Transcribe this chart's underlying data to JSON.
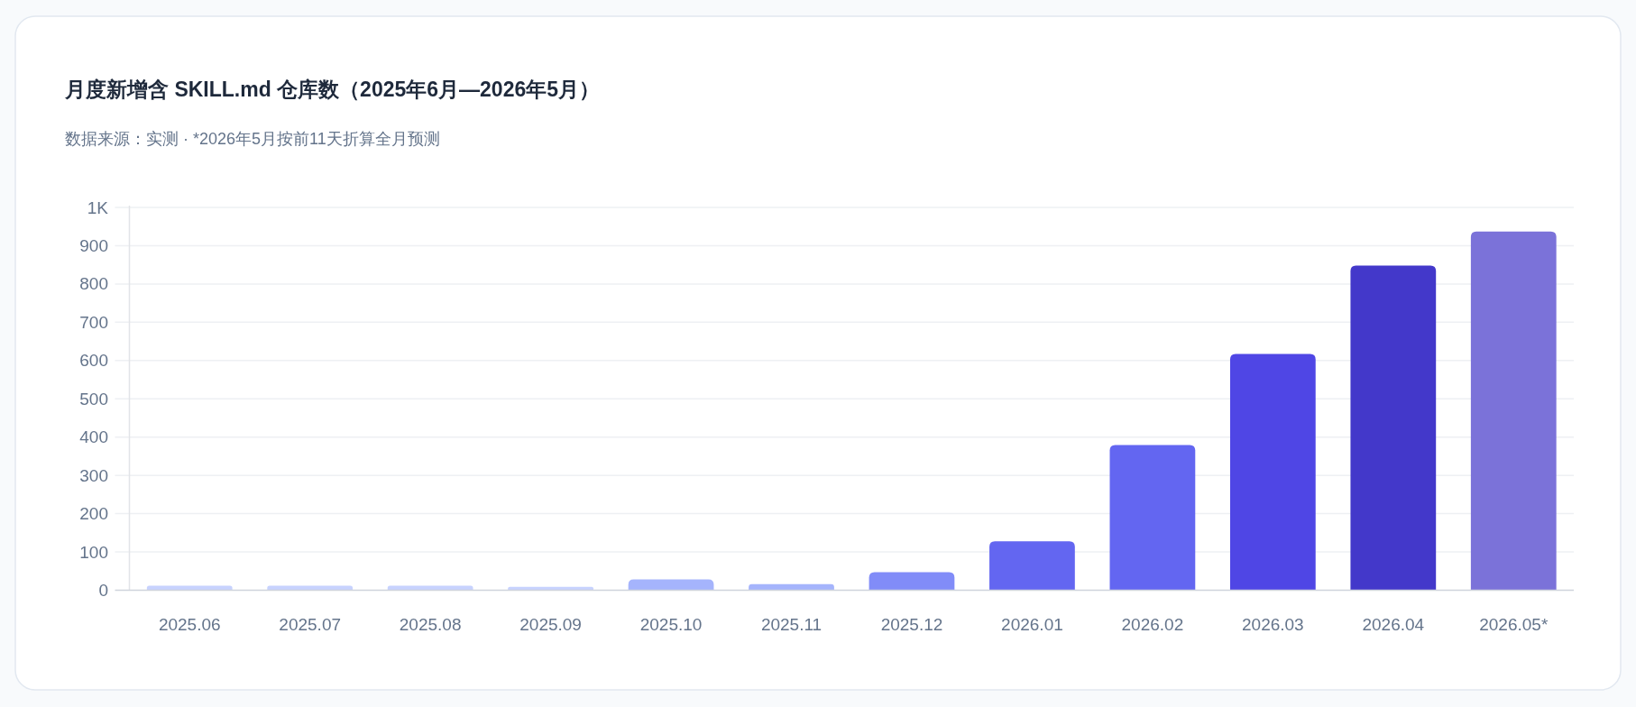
{
  "chart_data": {
    "type": "bar",
    "title": "月度新增含 SKILL.md 仓库数（2025年6月—2026年5月）",
    "subtitle": "数据来源：实测 · *2026年5月按前11天折算全月预测",
    "categories": [
      "2025.06",
      "2025.07",
      "2025.08",
      "2025.09",
      "2025.10",
      "2025.11",
      "2025.12",
      "2026.01",
      "2026.02",
      "2026.03",
      "2026.04",
      "2026.05*"
    ],
    "values": [
      12,
      12,
      12,
      9,
      28,
      16,
      47,
      128,
      379,
      617,
      848,
      937
    ],
    "colors": [
      "#c7d2fe",
      "#c7d2fe",
      "#c7d2fe",
      "#c7d2fe",
      "#a5b4fc",
      "#a5b4fc",
      "#818cf8",
      "#6366f1",
      "#6366f1",
      "#4f46e5",
      "#4338ca",
      "#7b72d9"
    ],
    "ylim": [
      0,
      1000
    ],
    "yticks": [
      0,
      100,
      200,
      300,
      400,
      500,
      600,
      700,
      800,
      900,
      {
        "value": 1000,
        "label": "1K"
      }
    ],
    "grid": "y"
  }
}
